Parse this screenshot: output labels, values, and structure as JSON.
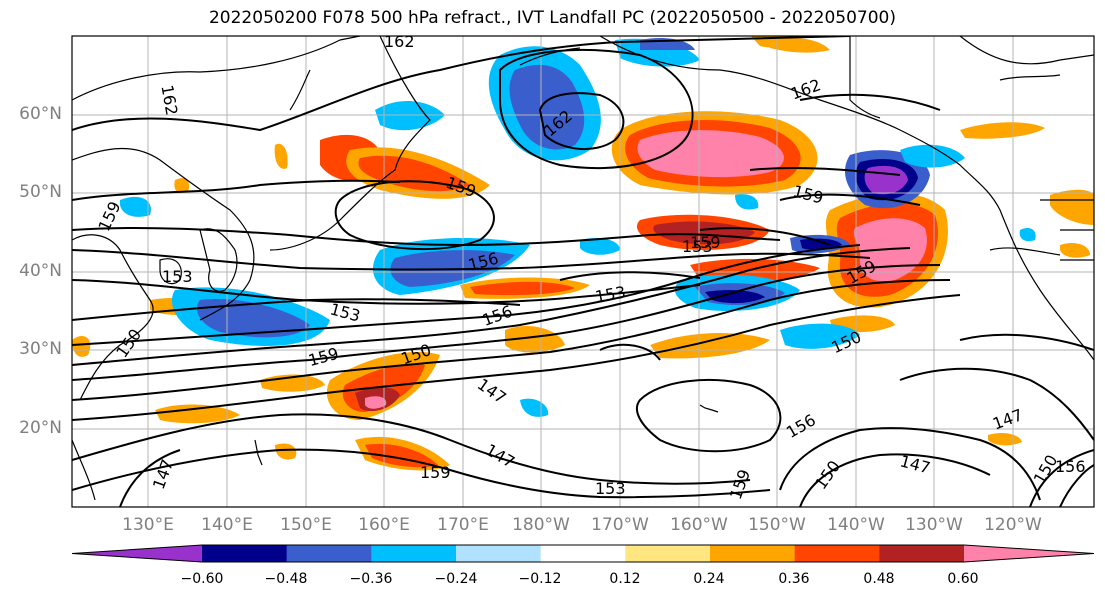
{
  "title": "2022050200 F078 500 hPa refract., IVT Landfall PC (2022050500 - 2022050700)",
  "lat_labels": [
    "60°N",
    "50°N",
    "40°N",
    "30°N",
    "20°N"
  ],
  "lon_labels": [
    "130°E",
    "140°E",
    "150°E",
    "160°E",
    "170°E",
    "180°W",
    "170°W",
    "160°W",
    "150°W",
    "140°W",
    "130°W",
    "120°W"
  ],
  "colorbar": {
    "ticks": [
      "−0.60",
      "−0.48",
      "−0.36",
      "−0.24",
      "−0.12",
      "0.12",
      "0.24",
      "0.36",
      "0.48",
      "0.60"
    ],
    "colors": [
      "#9932cc",
      "#00008b",
      "#3a5fcd",
      "#00bfff",
      "#b0e2ff",
      "#ffffff",
      "#ffe680",
      "#ffa500",
      "#ff4500",
      "#b22222",
      "#ff82ab"
    ]
  },
  "contour_labels": [
    "162",
    "162",
    "162",
    "162",
    "159",
    "159",
    "159",
    "159",
    "159",
    "159",
    "159",
    "159",
    "153",
    "153",
    "153",
    "153",
    "153",
    "156",
    "156",
    "156",
    "156",
    "150",
    "150",
    "150",
    "150",
    "150",
    "147",
    "147",
    "147",
    "147",
    "147"
  ]
}
